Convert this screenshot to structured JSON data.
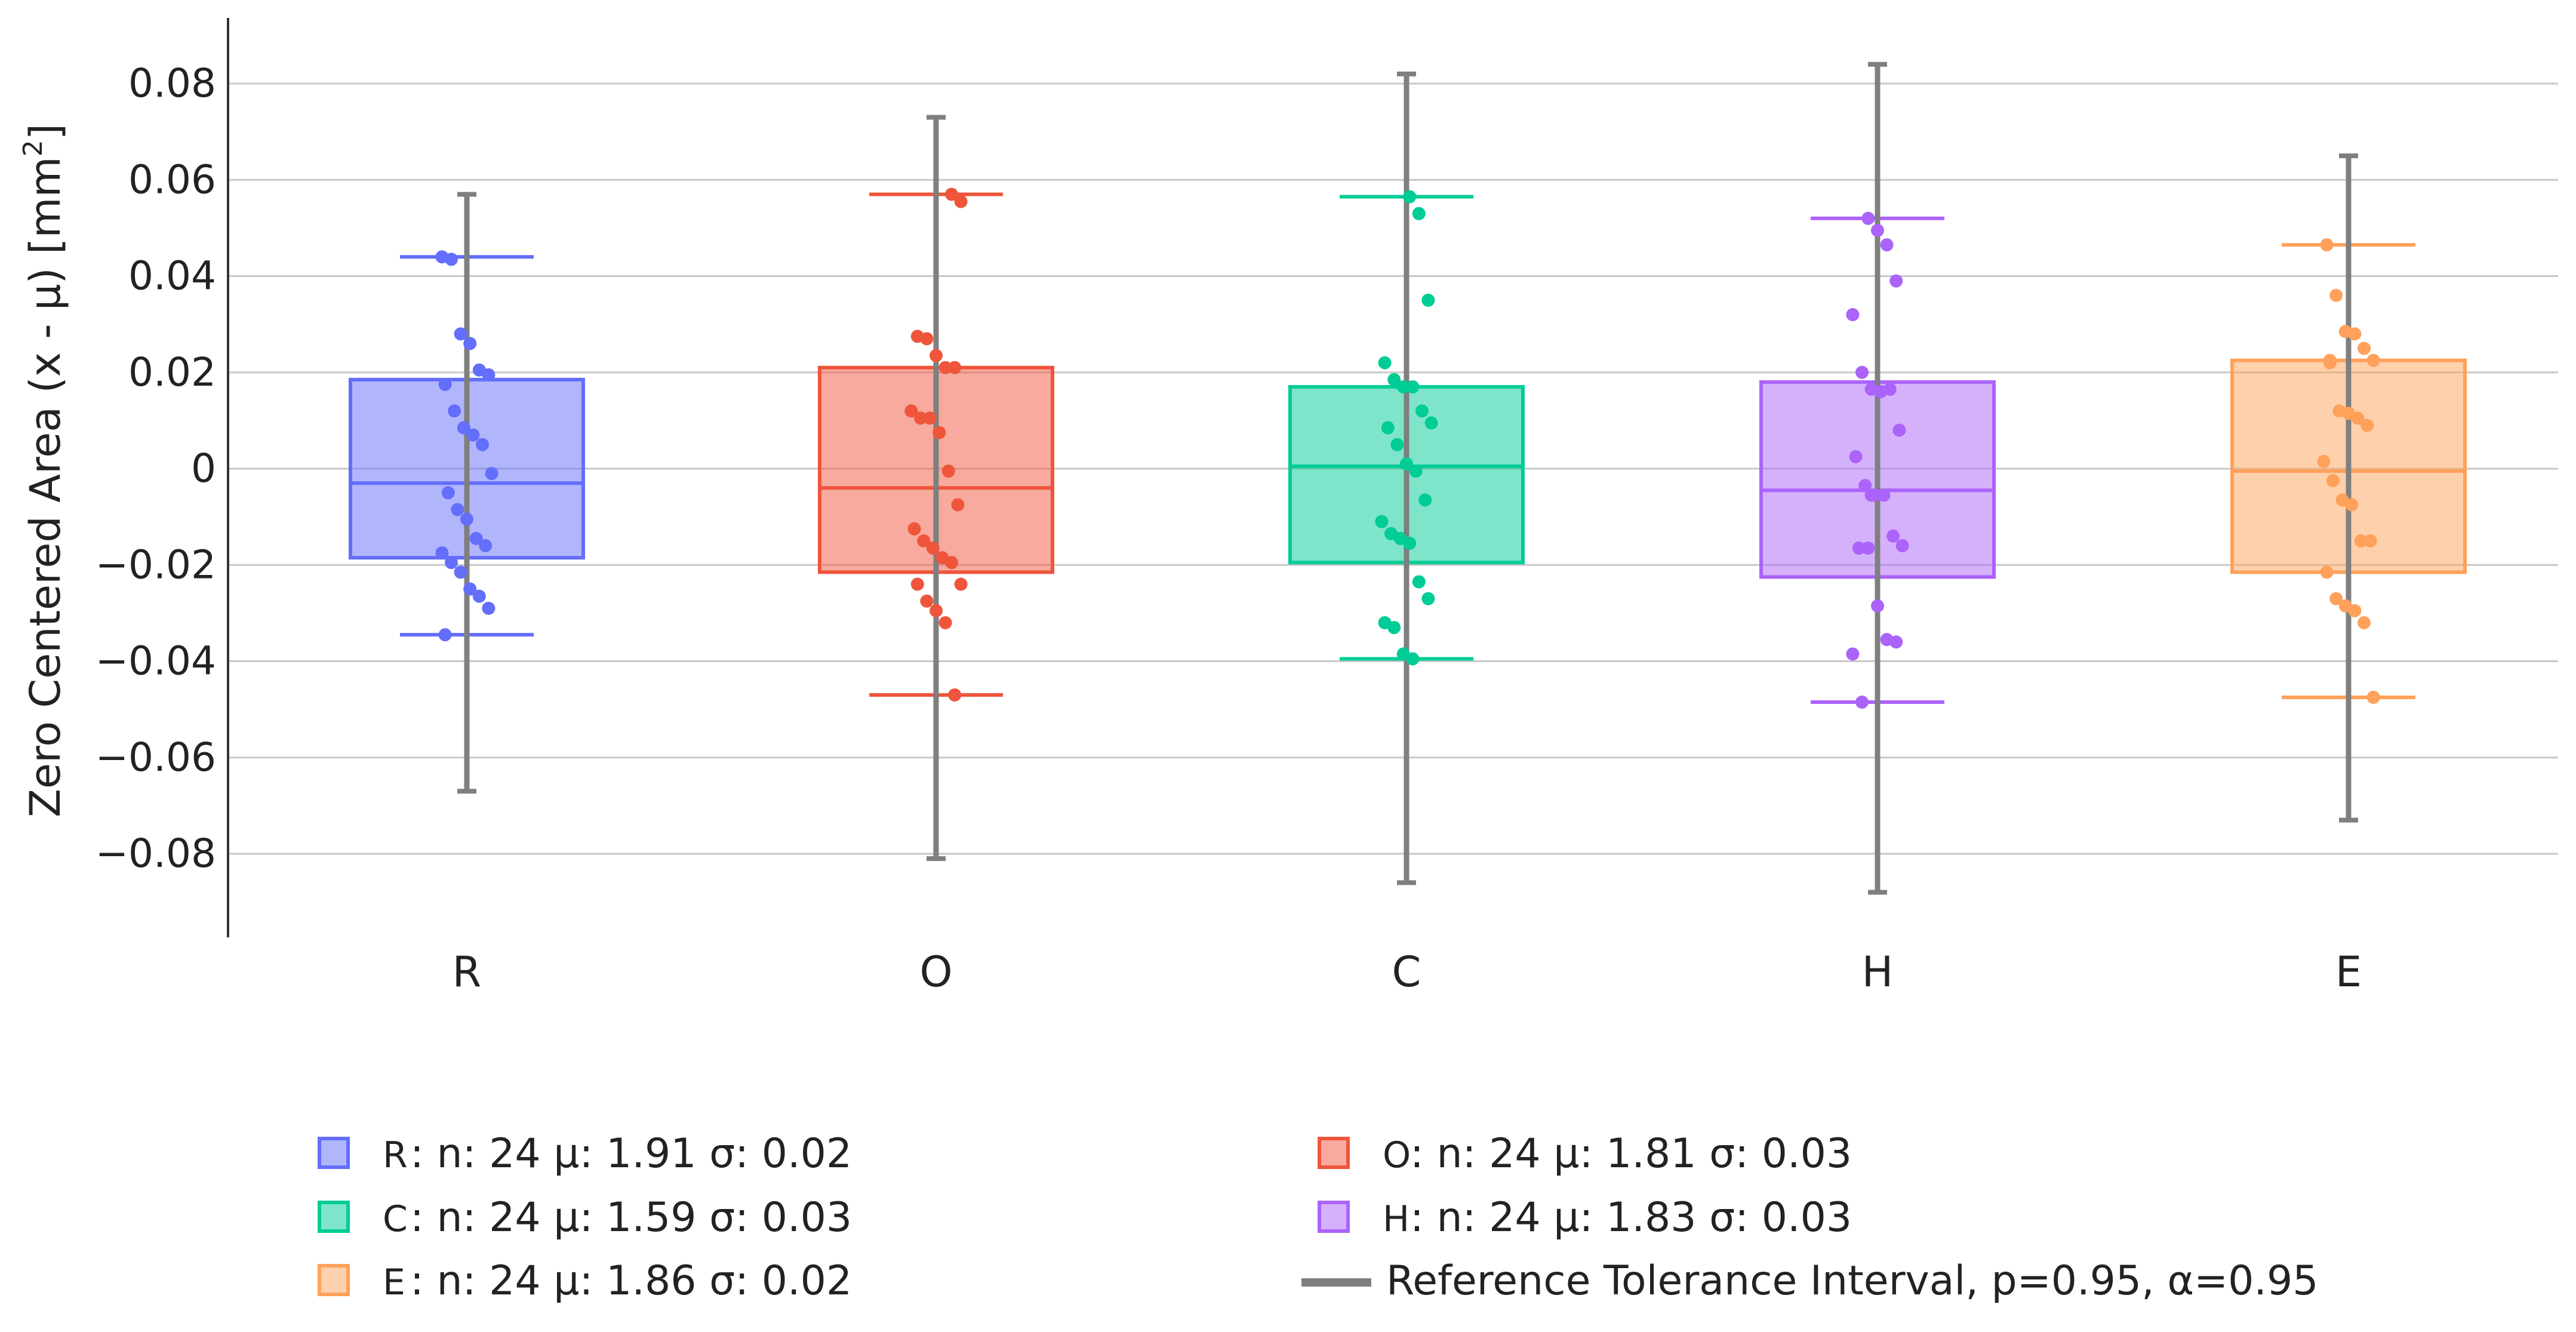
{
  "chart_data": {
    "type": "box",
    "ylabel": "Zero Centered Area (x - μ) [mm",
    "ylabel_sup": "2",
    "ylabel_end": "]",
    "ylim": [
      -0.098,
      0.093
    ],
    "yticks": [
      0.08,
      0.06,
      0.04,
      0.02,
      0,
      -0.02,
      -0.04,
      -0.06,
      -0.08
    ],
    "ytick_labels": [
      "0.08",
      "0.06",
      "0.04",
      "0.02",
      "0",
      "−0.02",
      "−0.04",
      "−0.06",
      "−0.08"
    ],
    "grid": true,
    "categories": [
      "R",
      "O",
      "C",
      "H",
      "E"
    ],
    "series": [
      {
        "name": "R",
        "color": "#636efa",
        "q1": -0.0185,
        "median": -0.003,
        "q3": 0.0185,
        "whisker_low": -0.0345,
        "whisker_high": 0.044,
        "tolerance": [
          -0.067,
          0.057
        ],
        "points": [
          0.044,
          0.0435,
          0.028,
          0.026,
          0.0205,
          0.0195,
          0.0175,
          0.012,
          0.0085,
          0.007,
          0.005,
          -0.001,
          -0.005,
          -0.0085,
          -0.0105,
          -0.0145,
          -0.016,
          -0.0175,
          -0.0195,
          -0.0215,
          -0.025,
          -0.0265,
          -0.029,
          -0.0345
        ]
      },
      {
        "name": "O",
        "color": "#ef553b",
        "q1": -0.0215,
        "median": -0.004,
        "q3": 0.021,
        "whisker_low": -0.047,
        "whisker_high": 0.057,
        "tolerance": [
          -0.081,
          0.073
        ],
        "points": [
          0.057,
          0.0555,
          0.0275,
          0.027,
          0.0235,
          0.021,
          0.021,
          0.012,
          0.0105,
          0.0105,
          0.0075,
          -0.0005,
          -0.0075,
          -0.0125,
          -0.015,
          -0.0165,
          -0.0185,
          -0.0195,
          -0.024,
          -0.024,
          -0.0275,
          -0.0295,
          -0.032,
          -0.047
        ]
      },
      {
        "name": "C",
        "color": "#00cc96",
        "q1": -0.0195,
        "median": 0.0005,
        "q3": 0.017,
        "whisker_low": -0.0395,
        "whisker_high": 0.0565,
        "tolerance": [
          -0.086,
          0.082
        ],
        "points": [
          0.0565,
          0.053,
          0.035,
          0.022,
          0.0185,
          0.017,
          0.017,
          0.012,
          0.0095,
          0.0085,
          0.005,
          0.001,
          -0.0005,
          -0.0065,
          -0.011,
          -0.0135,
          -0.0145,
          -0.0155,
          -0.0235,
          -0.027,
          -0.032,
          -0.033,
          -0.0385,
          -0.0395
        ]
      },
      {
        "name": "H",
        "color": "#ab63fa",
        "q1": -0.0225,
        "median": -0.0045,
        "q3": 0.018,
        "whisker_low": -0.0485,
        "whisker_high": 0.052,
        "tolerance": [
          -0.088,
          0.084
        ],
        "points": [
          0.052,
          0.0495,
          0.0465,
          0.039,
          0.032,
          0.02,
          0.0165,
          0.016,
          0.0165,
          0.008,
          0.0025,
          -0.0035,
          -0.0055,
          -0.0055,
          -0.014,
          -0.016,
          -0.0165,
          -0.0165,
          -0.0285,
          -0.0355,
          -0.036,
          -0.0385,
          -0.0485,
          -0.0055
        ]
      },
      {
        "name": "E",
        "color": "#ffa15a",
        "q1": -0.0215,
        "median": -0.0005,
        "q3": 0.0225,
        "whisker_low": -0.0475,
        "whisker_high": 0.0465,
        "tolerance": [
          -0.073,
          0.065
        ],
        "points": [
          0.0465,
          0.036,
          0.0285,
          0.028,
          0.025,
          0.0225,
          0.022,
          0.012,
          0.0115,
          0.0105,
          0.009,
          0.0015,
          -0.0025,
          -0.0065,
          -0.0075,
          -0.015,
          -0.015,
          -0.0215,
          -0.027,
          -0.0285,
          -0.0295,
          -0.032,
          -0.0475,
          0.0225
        ]
      }
    ],
    "tolerance_color": "#7f7f7f",
    "legend": {
      "placement": "bottom",
      "entries": [
        {
          "key": "R",
          "text": ": n: 24 μ: 1.91 σ: 0.02",
          "color": "#636efa"
        },
        {
          "key": "O",
          "text": ": n: 24 μ: 1.81 σ: 0.03",
          "color": "#ef553b"
        },
        {
          "key": "C",
          "text": ": n: 24 μ: 1.59 σ: 0.03",
          "color": "#00cc96"
        },
        {
          "key": "H",
          "text": ": n: 24 μ: 1.83 σ: 0.03",
          "color": "#ab63fa"
        },
        {
          "key": "E",
          "text": ": n: 24 μ: 1.86 σ: 0.02",
          "color": "#ffa15a"
        }
      ],
      "tolerance_label": "Reference Tolerance Interval, p=0.95, α=0.95"
    }
  }
}
